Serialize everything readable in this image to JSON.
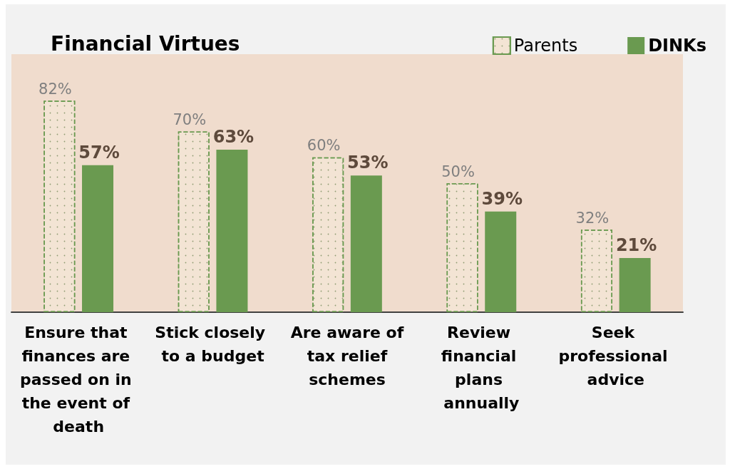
{
  "chart_data": {
    "type": "bar",
    "title": "Financial Virtues",
    "categories": [
      "Ensure that finances are passed on in the event of death",
      "Stick closely to a budget",
      "Are aware of tax relief schemes",
      "Review financial plans annually",
      "Seek professional advice"
    ],
    "series": [
      {
        "name": "Parents",
        "color": "#f3e4d4",
        "values": [
          82,
          70,
          60,
          50,
          32
        ],
        "value_labels": [
          "82%",
          "70%",
          "60%",
          "50%",
          "32%"
        ]
      },
      {
        "name": "DINKs",
        "color": "#6a9a50",
        "values": [
          57,
          63,
          53,
          39,
          21
        ],
        "value_labels": [
          "57%",
          "63%",
          "53%",
          "39%",
          "21%"
        ]
      }
    ],
    "legend": "top right",
    "grid": false,
    "tick_labels": "x"
  }
}
